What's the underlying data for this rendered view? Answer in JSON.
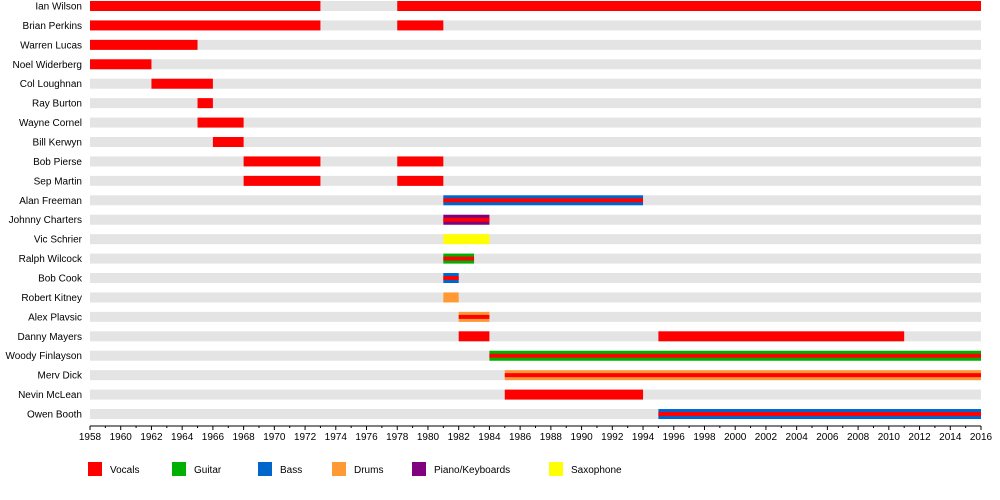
{
  "colors": {
    "Vocals": "#ff0000",
    "Guitar": "#00b000",
    "Bass": "#0066cc",
    "Drums": "#ff9933",
    "Piano/Keyboards": "#800080",
    "Saxophone": "#ffff00",
    "row_background": "#e4e4e4"
  },
  "chart_data": {
    "type": "timeline",
    "xlim": [
      1958,
      2016
    ],
    "x_ticks": [
      1958,
      1960,
      1962,
      1964,
      1966,
      1968,
      1970,
      1972,
      1974,
      1976,
      1978,
      1980,
      1982,
      1984,
      1986,
      1988,
      1990,
      1992,
      1994,
      1996,
      1998,
      2000,
      2002,
      2004,
      2006,
      2008,
      2010,
      2012,
      2014,
      2016
    ],
    "legend": [
      "Vocals",
      "Guitar",
      "Bass",
      "Drums",
      "Piano/Keyboards",
      "Saxophone"
    ],
    "legend_position": "bottom",
    "members": [
      {
        "name": "Ian Wilson",
        "periods": [
          {
            "start": 1958,
            "end": 1973,
            "roles": [
              "Vocals"
            ]
          },
          {
            "start": 1978,
            "end": 2016,
            "roles": [
              "Vocals"
            ]
          }
        ]
      },
      {
        "name": "Brian Perkins",
        "periods": [
          {
            "start": 1958,
            "end": 1973,
            "roles": [
              "Vocals"
            ]
          },
          {
            "start": 1978,
            "end": 1981,
            "roles": [
              "Vocals"
            ]
          }
        ]
      },
      {
        "name": "Warren Lucas",
        "periods": [
          {
            "start": 1958,
            "end": 1965,
            "roles": [
              "Vocals"
            ]
          }
        ]
      },
      {
        "name": "Noel Widerberg",
        "periods": [
          {
            "start": 1958,
            "end": 1962,
            "roles": [
              "Vocals"
            ]
          }
        ]
      },
      {
        "name": "Col Loughnan",
        "periods": [
          {
            "start": 1962,
            "end": 1966,
            "roles": [
              "Vocals"
            ]
          }
        ]
      },
      {
        "name": "Ray Burton",
        "periods": [
          {
            "start": 1965,
            "end": 1966,
            "roles": [
              "Vocals"
            ]
          }
        ]
      },
      {
        "name": "Wayne Cornel",
        "periods": [
          {
            "start": 1965,
            "end": 1968,
            "roles": [
              "Vocals"
            ]
          }
        ]
      },
      {
        "name": "Bill Kerwyn",
        "periods": [
          {
            "start": 1966,
            "end": 1968,
            "roles": [
              "Vocals"
            ]
          }
        ]
      },
      {
        "name": "Bob Pierse",
        "periods": [
          {
            "start": 1968,
            "end": 1973,
            "roles": [
              "Vocals"
            ]
          },
          {
            "start": 1978,
            "end": 1981,
            "roles": [
              "Vocals"
            ]
          }
        ]
      },
      {
        "name": "Sep Martin",
        "periods": [
          {
            "start": 1968,
            "end": 1973,
            "roles": [
              "Vocals"
            ]
          },
          {
            "start": 1978,
            "end": 1981,
            "roles": [
              "Vocals"
            ]
          }
        ]
      },
      {
        "name": "Alan Freeman",
        "periods": [
          {
            "start": 1981,
            "end": 1994,
            "roles": [
              "Bass",
              "Vocals"
            ]
          }
        ]
      },
      {
        "name": "Johnny Charters",
        "periods": [
          {
            "start": 1981,
            "end": 1984,
            "roles": [
              "Piano/Keyboards",
              "Vocals"
            ]
          }
        ]
      },
      {
        "name": "Vic Schrier",
        "periods": [
          {
            "start": 1981,
            "end": 1984,
            "roles": [
              "Saxophone"
            ]
          }
        ]
      },
      {
        "name": "Ralph Wilcock",
        "periods": [
          {
            "start": 1981,
            "end": 1983,
            "roles": [
              "Guitar",
              "Vocals"
            ]
          }
        ]
      },
      {
        "name": "Bob Cook",
        "periods": [
          {
            "start": 1981,
            "end": 1982,
            "roles": [
              "Bass",
              "Vocals"
            ]
          }
        ]
      },
      {
        "name": "Robert Kitney",
        "periods": [
          {
            "start": 1981,
            "end": 1982,
            "roles": [
              "Drums"
            ]
          }
        ]
      },
      {
        "name": "Alex Plavsic",
        "periods": [
          {
            "start": 1982,
            "end": 1984,
            "roles": [
              "Drums",
              "Vocals"
            ]
          }
        ]
      },
      {
        "name": "Danny Mayers",
        "periods": [
          {
            "start": 1982,
            "end": 1984,
            "roles": [
              "Vocals"
            ]
          },
          {
            "start": 1995,
            "end": 2011,
            "roles": [
              "Vocals"
            ]
          }
        ]
      },
      {
        "name": "Woody Finlayson",
        "periods": [
          {
            "start": 1984,
            "end": 2016,
            "roles": [
              "Guitar",
              "Vocals"
            ]
          }
        ]
      },
      {
        "name": "Merv Dick",
        "periods": [
          {
            "start": 1985,
            "end": 2016,
            "roles": [
              "Drums",
              "Vocals"
            ]
          }
        ]
      },
      {
        "name": "Nevin McLean",
        "periods": [
          {
            "start": 1985,
            "end": 1994,
            "roles": [
              "Vocals"
            ]
          }
        ]
      },
      {
        "name": "Owen Booth",
        "periods": [
          {
            "start": 1995,
            "end": 2016,
            "roles": [
              "Bass",
              "Vocals"
            ]
          }
        ]
      }
    ]
  }
}
